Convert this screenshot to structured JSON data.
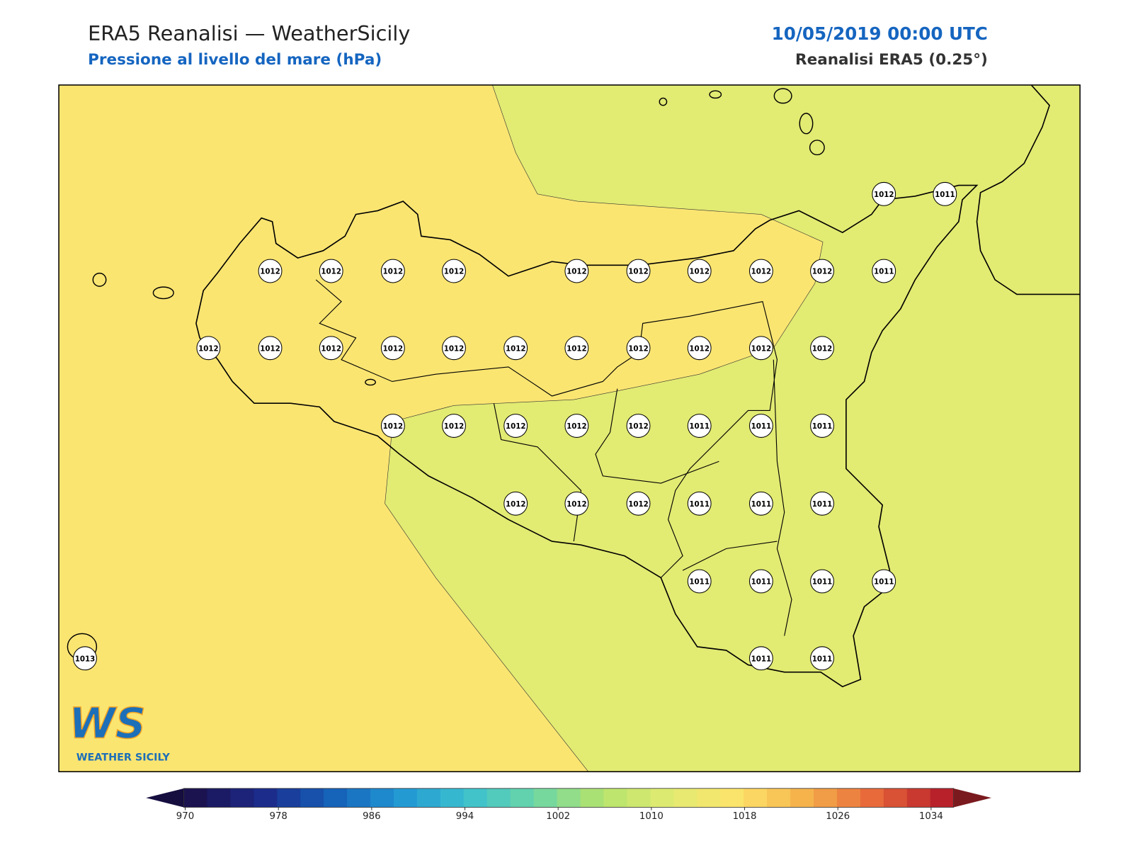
{
  "header": {
    "title": "ERA5 Reanalisi — WeatherSicily",
    "subtitle": "Pressione al livello del mare (hPa)",
    "date": "10/05/2019 00:00 UTC",
    "source": "Reanalisi ERA5 (0.25°)"
  },
  "stations": [
    1012,
    1011,
    1012,
    1012,
    1012,
    1012,
    1012,
    1012,
    1012,
    1012,
    1012,
    1011,
    1012,
    1012,
    1012,
    1012,
    1012,
    1012,
    1012,
    1012,
    1012,
    1012,
    1012,
    1012,
    1012,
    1012,
    1012,
    1012,
    1011,
    1011,
    1011,
    1012,
    1012,
    1012,
    1011,
    1011,
    1011,
    1011,
    1011,
    1011,
    1011,
    1013,
    1011,
    1011
  ],
  "colorbar": {
    "ticks": [
      970,
      978,
      986,
      994,
      1002,
      1010,
      1018,
      1026,
      1034
    ]
  },
  "logo": {
    "mark": "WS",
    "name": "WEATHER SICILY"
  }
}
